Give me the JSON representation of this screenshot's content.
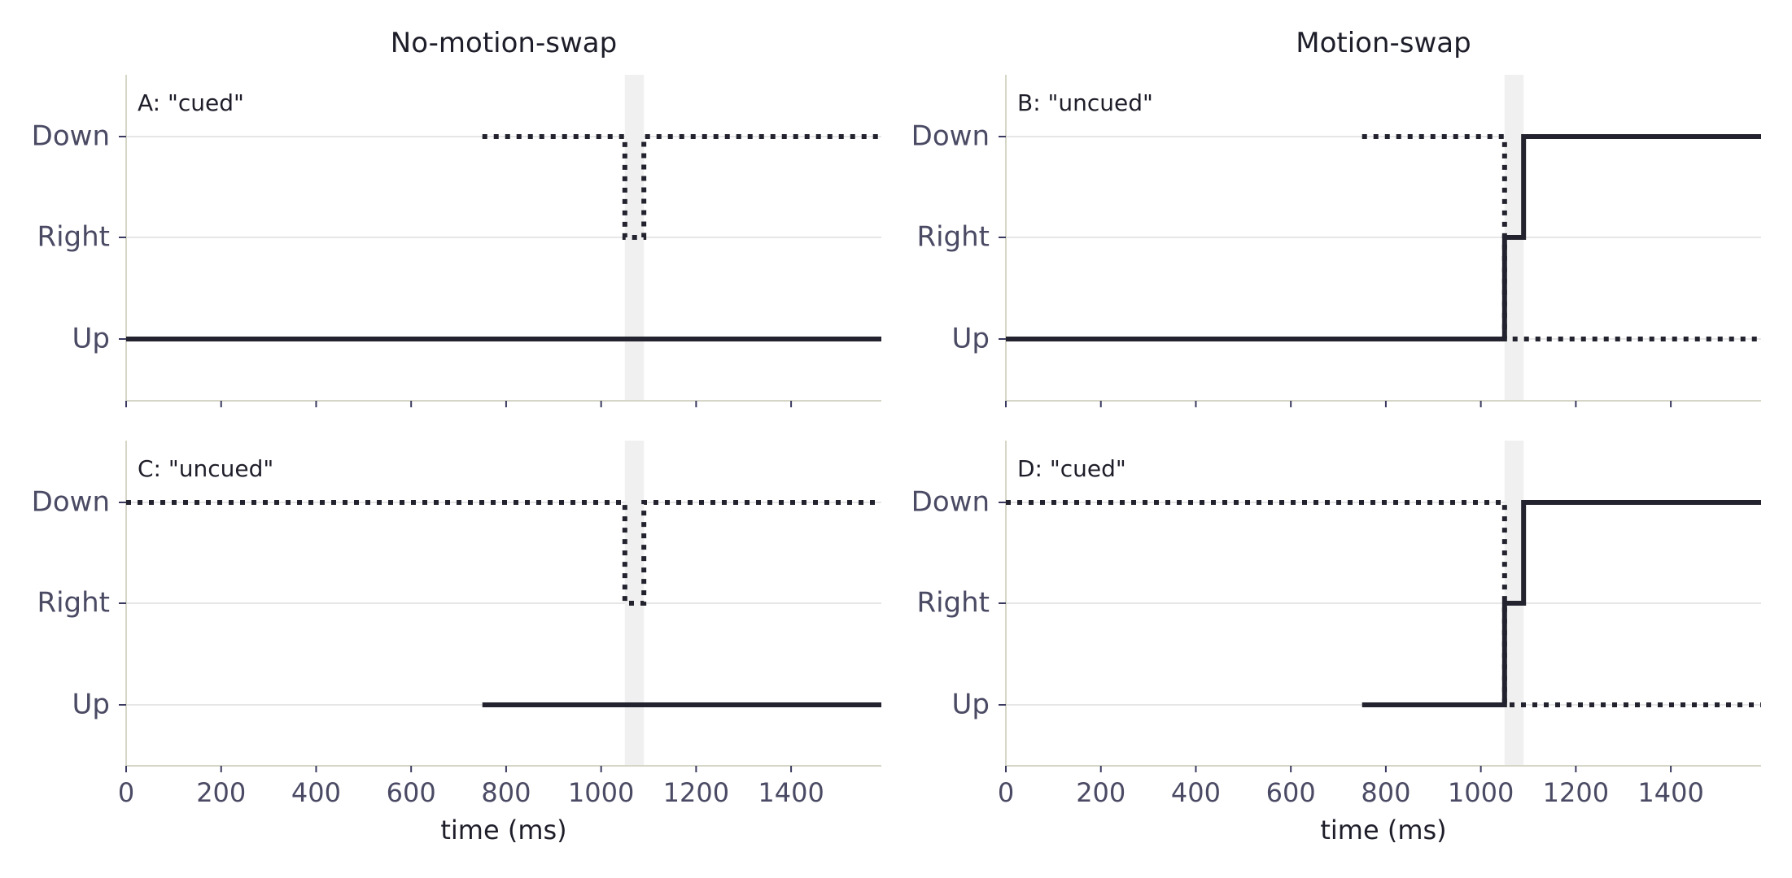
{
  "chart_data": [
    {
      "type": "line",
      "column_title": "No-motion-swap",
      "panel_label": "A: \"cued\"",
      "xlabel": "",
      "categories": [
        "Up",
        "Right",
        "Down"
      ],
      "xlim": [
        0,
        1590
      ],
      "xticks": [
        0,
        200,
        400,
        600,
        800,
        1000,
        1200,
        1400
      ],
      "show_x_tick_labels": false,
      "shaded_interval": [
        1050,
        1090
      ],
      "grid": "horizontal",
      "series": [
        {
          "style": "solid",
          "points": [
            [
              0,
              "Up"
            ],
            [
              1590,
              "Up"
            ]
          ]
        },
        {
          "style": "dotted",
          "points": [
            [
              750,
              "Down"
            ],
            [
              1050,
              "Down"
            ],
            [
              1050,
              "Right"
            ],
            [
              1090,
              "Right"
            ],
            [
              1090,
              "Down"
            ],
            [
              1590,
              "Down"
            ]
          ]
        }
      ]
    },
    {
      "type": "line",
      "column_title": "Motion-swap",
      "panel_label": "B: \"uncued\"",
      "xlabel": "",
      "categories": [
        "Up",
        "Right",
        "Down"
      ],
      "xlim": [
        0,
        1590
      ],
      "xticks": [
        0,
        200,
        400,
        600,
        800,
        1000,
        1200,
        1400
      ],
      "show_x_tick_labels": false,
      "shaded_interval": [
        1050,
        1090
      ],
      "grid": "horizontal",
      "series": [
        {
          "style": "solid",
          "points": [
            [
              0,
              "Up"
            ],
            [
              1050,
              "Up"
            ],
            [
              1050,
              "Right"
            ],
            [
              1090,
              "Right"
            ],
            [
              1090,
              "Down"
            ],
            [
              1590,
              "Down"
            ]
          ]
        },
        {
          "style": "dotted",
          "points": [
            [
              750,
              "Down"
            ],
            [
              1050,
              "Down"
            ],
            [
              1050,
              "Up"
            ],
            [
              1590,
              "Up"
            ]
          ]
        }
      ]
    },
    {
      "type": "line",
      "column_title": "",
      "panel_label": "C: \"uncued\"",
      "xlabel": "time  (ms)",
      "categories": [
        "Up",
        "Right",
        "Down"
      ],
      "xlim": [
        0,
        1590
      ],
      "xticks": [
        0,
        200,
        400,
        600,
        800,
        1000,
        1200,
        1400
      ],
      "xtick_labels": [
        "0",
        "200",
        "400",
        "600",
        "800",
        "1000",
        "1200",
        "1400"
      ],
      "show_x_tick_labels": true,
      "shaded_interval": [
        1050,
        1090
      ],
      "grid": "horizontal",
      "series": [
        {
          "style": "solid",
          "points": [
            [
              750,
              "Up"
            ],
            [
              1590,
              "Up"
            ]
          ]
        },
        {
          "style": "dotted",
          "points": [
            [
              0,
              "Down"
            ],
            [
              1050,
              "Down"
            ],
            [
              1050,
              "Right"
            ],
            [
              1090,
              "Right"
            ],
            [
              1090,
              "Down"
            ],
            [
              1590,
              "Down"
            ]
          ]
        }
      ]
    },
    {
      "type": "line",
      "column_title": "",
      "panel_label": "D: \"cued\"",
      "xlabel": "time  (ms)",
      "categories": [
        "Up",
        "Right",
        "Down"
      ],
      "xlim": [
        0,
        1590
      ],
      "xticks": [
        0,
        200,
        400,
        600,
        800,
        1000,
        1200,
        1400
      ],
      "xtick_labels": [
        "0",
        "200",
        "400",
        "600",
        "800",
        "1000",
        "1200",
        "1400"
      ],
      "show_x_tick_labels": true,
      "shaded_interval": [
        1050,
        1090
      ],
      "grid": "horizontal",
      "series": [
        {
          "style": "solid",
          "points": [
            [
              750,
              "Up"
            ],
            [
              1050,
              "Up"
            ],
            [
              1050,
              "Right"
            ],
            [
              1090,
              "Right"
            ],
            [
              1090,
              "Down"
            ],
            [
              1590,
              "Down"
            ]
          ]
        },
        {
          "style": "dotted",
          "points": [
            [
              0,
              "Down"
            ],
            [
              1050,
              "Down"
            ],
            [
              1050,
              "Up"
            ],
            [
              1590,
              "Up"
            ]
          ]
        }
      ]
    }
  ],
  "colors": {
    "line": "#23232f",
    "shade": "#f0f0f0",
    "grid": "#e6e6e6",
    "axis": "#d6d6c8",
    "tick": "#3a3a60"
  }
}
